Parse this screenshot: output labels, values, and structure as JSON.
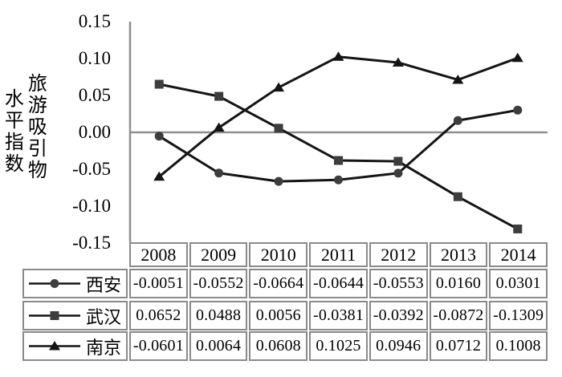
{
  "chart_data": {
    "type": "line",
    "title": "",
    "categories": [
      "2008",
      "2009",
      "2010",
      "2011",
      "2012",
      "2013",
      "2014"
    ],
    "series": [
      {
        "name": "西安",
        "marker": "circle",
        "values": [
          -0.0051,
          -0.0552,
          -0.0664,
          -0.0644,
          -0.0553,
          0.016,
          0.0301
        ]
      },
      {
        "name": "武汉",
        "marker": "square",
        "values": [
          0.0652,
          0.0488,
          0.0056,
          -0.0381,
          -0.0392,
          -0.0872,
          -0.1309
        ]
      },
      {
        "name": "南京",
        "marker": "triangle",
        "values": [
          -0.0601,
          0.0064,
          0.0608,
          0.1025,
          0.0946,
          0.0712,
          0.1008
        ]
      }
    ],
    "ylabel_columns": [
      "旅游吸引物",
      "水平指数"
    ],
    "xlabel": "",
    "ylim": [
      -0.15,
      0.15
    ],
    "yticks": [
      "0.15",
      "0.10",
      "0.05",
      "0.00",
      "-0.05",
      "-0.10",
      "-0.15"
    ],
    "grid": "zero-line-only",
    "legend_position": "table-left",
    "value_decimals": 4
  },
  "colors": {
    "line": "#141414",
    "marker_fill": "#3d3d3d",
    "triangle_fill": "#141414",
    "axis": "#8f8f8f",
    "table_border": "#8a8a8a",
    "text": "#000000"
  }
}
